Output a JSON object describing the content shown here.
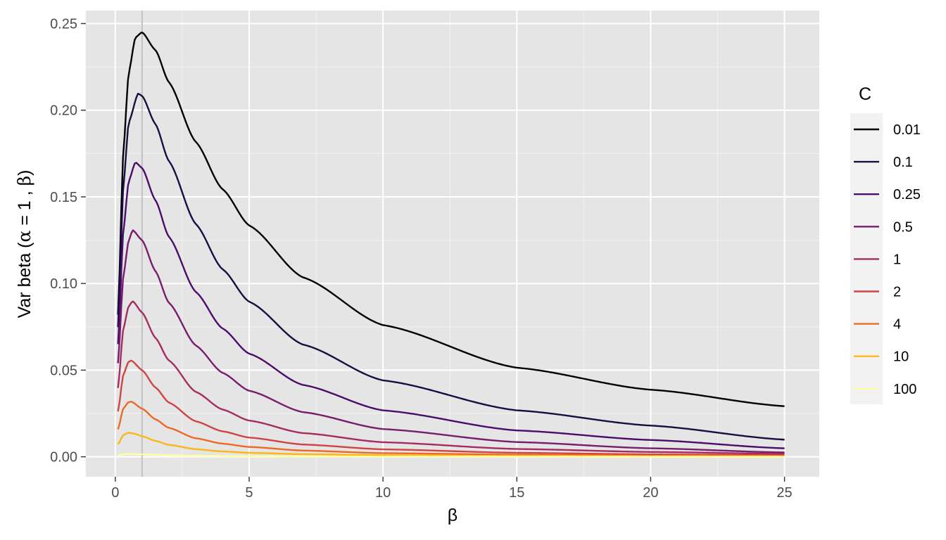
{
  "chart_data": {
    "type": "line",
    "xlabel": "β",
    "ylabel": {
      "prefix": "Var beta (",
      "alpha": "α",
      "eq": " = 1 , ",
      "beta": "β",
      "suffix": ")"
    },
    "xlim": [
      -1.1,
      26.3
    ],
    "ylim": [
      -0.0115,
      0.2575
    ],
    "x_ticks": [
      0,
      5,
      10,
      15,
      20,
      25
    ],
    "y_ticks": [
      0.0,
      0.05,
      0.1,
      0.15,
      0.2,
      0.25
    ],
    "y_tick_labels": [
      "0.00",
      "0.05",
      "0.10",
      "0.15",
      "0.20",
      "0.25"
    ],
    "grid": true,
    "background": "#e5e5e5",
    "reference_line": {
      "x": 1,
      "color": "#c0c0c0"
    },
    "legend": {
      "title": "C",
      "position": "right"
    },
    "x_range": [
      0.1,
      25
    ],
    "series": [
      {
        "name": "0.01",
        "color": "#000004",
        "points": [
          [
            0.1,
            0.082
          ],
          [
            0.3,
            0.1765
          ],
          [
            0.5,
            0.2217
          ],
          [
            0.75,
            0.242
          ],
          [
            1,
            0.245
          ],
          [
            1.5,
            0.2347
          ],
          [
            2,
            0.2162
          ],
          [
            3,
            0.1818
          ],
          [
            4,
            0.1545
          ],
          [
            5,
            0.1335
          ],
          [
            7,
            0.1036
          ],
          [
            10,
            0.076
          ],
          [
            15,
            0.0514
          ],
          [
            20,
            0.0387
          ],
          [
            25,
            0.0292
          ]
        ]
      },
      {
        "name": "0.1",
        "color": "#1B0C42",
        "points": [
          [
            0.1,
            0.0748
          ],
          [
            0.3,
            0.1563
          ],
          [
            0.5,
            0.193
          ],
          [
            0.85,
            0.2096
          ],
          [
            1,
            0.2083
          ],
          [
            1.5,
            0.192
          ],
          [
            2,
            0.1707
          ],
          [
            3,
            0.1344
          ],
          [
            4,
            0.1083
          ],
          [
            5,
            0.0895
          ],
          [
            7,
            0.0648
          ],
          [
            10,
            0.0441
          ],
          [
            15,
            0.0268
          ],
          [
            20,
            0.018
          ],
          [
            25,
            0.0099
          ]
        ]
      },
      {
        "name": "0.25",
        "color": "#4B0C6B",
        "points": [
          [
            0.1,
            0.065
          ],
          [
            0.3,
            0.1306
          ],
          [
            0.5,
            0.1591
          ],
          [
            0.75,
            0.17
          ],
          [
            1,
            0.1667
          ],
          [
            1.5,
            0.148
          ],
          [
            2,
            0.127
          ],
          [
            3,
            0.0952
          ],
          [
            4,
            0.0741
          ],
          [
            5,
            0.0595
          ],
          [
            7,
            0.0415
          ],
          [
            10,
            0.0268
          ],
          [
            15,
            0.0152
          ],
          [
            20,
            0.0097
          ],
          [
            25,
            0.0049
          ]
        ]
      },
      {
        "name": "0.5",
        "color": "#781C6D",
        "points": [
          [
            0.1,
            0.054
          ],
          [
            0.3,
            0.1045
          ],
          [
            0.5,
            0.125
          ],
          [
            0.65,
            0.1308
          ],
          [
            1,
            0.125
          ],
          [
            1.5,
            0.1071
          ],
          [
            2,
            0.0889
          ],
          [
            3,
            0.0643
          ],
          [
            4,
            0.0485
          ],
          [
            5,
            0.0381
          ],
          [
            7,
            0.0258
          ],
          [
            10,
            0.016
          ],
          [
            15,
            0.0085
          ],
          [
            20,
            0.0049
          ],
          [
            25,
            0.0025
          ]
        ]
      },
      {
        "name": "1",
        "color": "#A52C60",
        "points": [
          [
            0.1,
            0.0397
          ],
          [
            0.3,
            0.074
          ],
          [
            0.5,
            0.087
          ],
          [
            0.65,
            0.0898
          ],
          [
            1,
            0.0833
          ],
          [
            1.5,
            0.0686
          ],
          [
            2,
            0.0556
          ],
          [
            3,
            0.0375
          ],
          [
            4,
            0.0273
          ],
          [
            5,
            0.0209
          ],
          [
            7,
            0.0137
          ],
          [
            10,
            0.0084
          ],
          [
            15,
            0.0045
          ],
          [
            20,
            0.0028
          ],
          [
            25,
            0.0017
          ]
        ]
      },
      {
        "name": "2",
        "color": "#CF4446",
        "points": [
          [
            0.1,
            0.0262
          ],
          [
            0.3,
            0.0475
          ],
          [
            0.5,
            0.055
          ],
          [
            0.6,
            0.0555
          ],
          [
            1,
            0.05
          ],
          [
            1.5,
            0.04
          ],
          [
            2,
            0.0313
          ],
          [
            3,
            0.0205
          ],
          [
            4,
            0.0147
          ],
          [
            5,
            0.0111
          ],
          [
            7,
            0.0071
          ],
          [
            10,
            0.0043
          ],
          [
            15,
            0.0023
          ],
          [
            20,
            0.0014
          ],
          [
            25,
            0.0009
          ]
        ]
      },
      {
        "name": "4",
        "color": "#ED6925",
        "points": [
          [
            0.1,
            0.0158
          ],
          [
            0.3,
            0.028
          ],
          [
            0.5,
            0.0316
          ],
          [
            0.6,
            0.0318
          ],
          [
            1,
            0.0278
          ],
          [
            1.5,
            0.0216
          ],
          [
            2,
            0.0167
          ],
          [
            3,
            0.0107
          ],
          [
            4,
            0.0076
          ],
          [
            5,
            0.0057
          ],
          [
            7,
            0.0036
          ],
          [
            10,
            0.0021
          ],
          [
            15,
            0.0012
          ],
          [
            20,
            0.0007
          ],
          [
            25,
            0.0005
          ]
        ]
      },
      {
        "name": "10",
        "color": "#FBB61A",
        "points": [
          [
            0.1,
            0.0072
          ],
          [
            0.3,
            0.0126
          ],
          [
            0.5,
            0.0139
          ],
          [
            0.7,
            0.0134
          ],
          [
            1,
            0.0119
          ],
          [
            1.5,
            0.0092
          ],
          [
            2,
            0.0069
          ],
          [
            3,
            0.0044
          ],
          [
            4,
            0.0031
          ],
          [
            5,
            0.0023
          ],
          [
            7,
            0.0015
          ],
          [
            10,
            0.0009
          ],
          [
            15,
            0.0005
          ],
          [
            20,
            0.0003
          ],
          [
            25,
            0.0002
          ]
        ]
      },
      {
        "name": "100",
        "color": "#FCFFA4",
        "points": [
          [
            0.1,
            0.0008
          ],
          [
            0.3,
            0.0015
          ],
          [
            0.5,
            0.0016
          ],
          [
            1,
            0.0014
          ],
          [
            2,
            0.0009
          ],
          [
            3,
            0.0006
          ],
          [
            5,
            0.0003
          ],
          [
            10,
            0.0001
          ],
          [
            15,
            0.0001
          ],
          [
            20,
            0.0
          ],
          [
            25,
            0.0
          ]
        ]
      }
    ]
  }
}
